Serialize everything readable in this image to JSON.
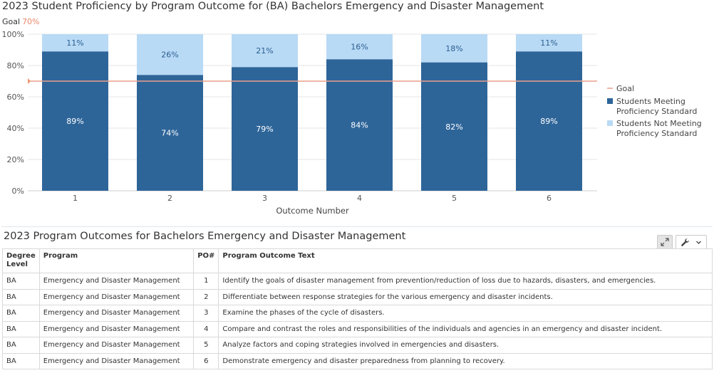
{
  "chart_data": {
    "type": "bar",
    "stacked": true,
    "title": "2023 Student Proficiency by Program Outcome for (BA) Bachelors Emergency and Disaster Management",
    "goal_label": "Goal",
    "goal_value_label": "70%",
    "goal": 70,
    "categories": [
      "1",
      "2",
      "3",
      "4",
      "5",
      "6"
    ],
    "series": [
      {
        "name": "Students Meeting Proficiency Standard",
        "values": [
          89,
          74,
          79,
          84,
          82,
          89
        ],
        "labels": [
          "89%",
          "74%",
          "79%",
          "84%",
          "82%",
          "89%"
        ],
        "color": "#2e6599"
      },
      {
        "name": "Students Not Meeting Proficiency Standard",
        "values": [
          11,
          26,
          21,
          16,
          18,
          11
        ],
        "labels": [
          "11%",
          "26%",
          "21%",
          "16%",
          "18%",
          "11%"
        ],
        "color": "#b9daf5"
      }
    ],
    "xlabel": "Outcome Number",
    "ylabel": "",
    "ylim": [
      0,
      100
    ],
    "yticks": [
      "0%",
      "20%",
      "40%",
      "60%",
      "80%",
      "100%"
    ],
    "grid": true,
    "legend_position": "right",
    "legend": [
      {
        "label": "Goal",
        "type": "line",
        "color": "#e8a08c"
      },
      {
        "label_lines": [
          "Students Meeting",
          "Proficiency Standard"
        ],
        "type": "box",
        "color": "#2e6599"
      },
      {
        "label_lines": [
          "Students Not Meeting",
          "Proficiency Standard"
        ],
        "type": "box",
        "color": "#b9daf5"
      }
    ],
    "colors": {
      "goal_line": "#e8a08c",
      "goal_marker": "#f0956f",
      "label_dark_bar": "#ffffff",
      "label_light_bar": "#2b5f91"
    }
  },
  "table": {
    "title": "2023 Program Outcomes for Bachelors Emergency and Disaster Management",
    "headers": [
      "Degree Level",
      "Program",
      "PO#",
      "Program Outcome Text"
    ],
    "rows": [
      [
        "BA",
        "Emergency and Disaster Management",
        "1",
        "Identify the goals of disaster management from prevention/reduction of loss due to hazards, disasters, and emergencies."
      ],
      [
        "BA",
        "Emergency and Disaster Management",
        "2",
        "Differentiate between response strategies for the various emergency and disaster incidents."
      ],
      [
        "BA",
        "Emergency and Disaster Management",
        "3",
        "Examine the phases of the cycle of disasters."
      ],
      [
        "BA",
        "Emergency and Disaster Management",
        "4",
        "Compare and contrast the roles and responsibilities of the individuals and agencies in an emergency and disaster incident."
      ],
      [
        "BA",
        "Emergency and Disaster Management",
        "5",
        "Analyze factors and coping strategies involved in emergencies and disasters."
      ],
      [
        "BA",
        "Emergency and Disaster Management",
        "6",
        "Demonstrate emergency and disaster preparedness from planning to recovery."
      ]
    ],
    "toolbar": {
      "expand_icon": "expand-icon",
      "tools_icon": "wrench-icon",
      "dropdown_icon": "chevron-down-icon"
    }
  }
}
